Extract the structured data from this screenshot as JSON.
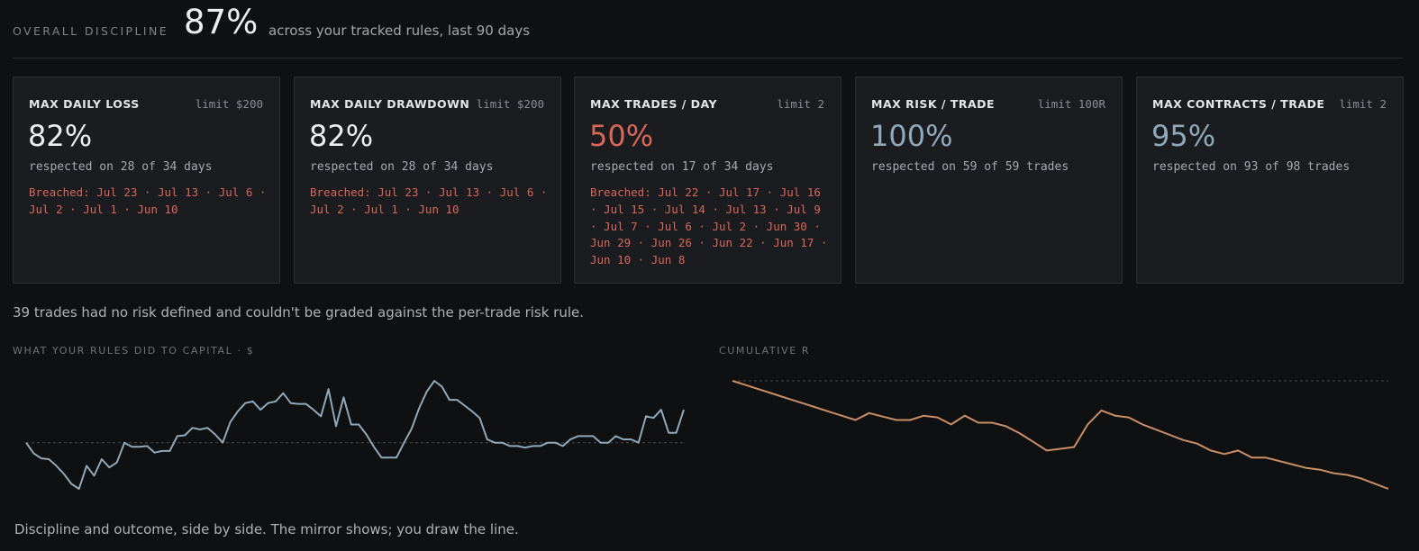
{
  "header": {
    "label": "OVERALL DISCIPLINE",
    "value": "87%",
    "subtitle": "across your tracked rules, last 90 days"
  },
  "rules": [
    {
      "title": "MAX DAILY LOSS",
      "limit": "limit $200",
      "pct": "82%",
      "respected": "respected on 28 of 34 days",
      "breached": "Breached: Jul 23 · Jul 13 · Jul 6 · Jul 2 · Jul 1 · Jun 10"
    },
    {
      "title": "MAX DAILY DRAWDOWN",
      "limit": "limit $200",
      "pct": "82%",
      "respected": "respected on 28 of 34 days",
      "breached": "Breached: Jul 23 · Jul 13 · Jul 6 · Jul 2 · Jul 1 · Jun 10"
    },
    {
      "title": "MAX TRADES / DAY",
      "limit": "limit 2",
      "pct": "50%",
      "respected": "respected on 17 of 34 days",
      "breached": "Breached: Jul 22 · Jul 17 · Jul 16 · Jul 15 · Jul 14 · Jul 13 · Jul 9 · Jul 7 · Jul 6 · Jul 2 · Jun 30 · Jun 29 · Jun 26 · Jun 22 · Jun 17 · Jun 10 · Jun 8"
    },
    {
      "title": "MAX RISK / TRADE",
      "limit": "limit 100R",
      "pct": "100%",
      "respected": "respected on 59 of 59 trades",
      "breached": ""
    },
    {
      "title": "MAX CONTRACTS / TRADE",
      "limit": "limit 2",
      "pct": "95%",
      "respected": "respected on 93 of 98 trades",
      "breached": ""
    }
  ],
  "note": "39 trades had no risk defined and couldn't be graded against the per-trade risk rule.",
  "footer": "Discipline and outcome, side by side. The mirror shows; you draw the line.",
  "colors": {
    "background": "#0f1012",
    "card": "#1b1c1f",
    "breach": "#d8675a",
    "capital_line": "#8fa9bb",
    "r_line": "#c98f67",
    "baseline": "#44474c"
  },
  "chart_data": [
    {
      "type": "line",
      "title": "WHAT YOUR RULES DID TO CAPITAL · $",
      "series": [
        {
          "values": [
            0,
            -13,
            -19,
            -20,
            -28,
            -38,
            -50,
            -56,
            -28,
            -40,
            -20,
            -30,
            -24,
            0,
            -5,
            -5,
            -4,
            -12,
            -10,
            -10,
            8,
            9,
            18,
            16,
            18,
            10,
            0,
            25,
            38,
            48,
            50,
            40,
            48,
            50,
            60,
            48,
            47,
            47,
            40,
            32,
            65,
            20,
            55,
            22,
            22,
            10,
            -5,
            -18,
            -18,
            -18,
            0,
            17,
            42,
            62,
            75,
            68,
            52,
            52,
            45,
            38,
            30,
            4,
            0,
            0,
            -4,
            -4,
            -6,
            -4,
            -4,
            0,
            0,
            -4,
            4,
            8,
            8,
            8,
            0,
            0,
            8,
            4,
            4,
            0,
            32,
            30,
            40,
            12,
            12,
            40
          ]
        }
      ],
      "baseline": 0
    },
    {
      "type": "line",
      "title": "CUMULATIVE R",
      "series": [
        {
          "values": [
            0,
            -2.5,
            -5,
            -7.5,
            -10,
            -12.5,
            -15,
            -17.5,
            -20,
            -22.5,
            -18.5,
            -20.5,
            -22.5,
            -22.5,
            -20,
            -21,
            -25,
            -20,
            -24,
            -24,
            -26,
            -30,
            -35,
            -40,
            -39,
            -38,
            -25,
            -17,
            -20,
            -21,
            -25,
            -28,
            -31,
            -34,
            -36,
            -40,
            -42,
            -40,
            -44,
            -44,
            -46,
            -48,
            -50,
            -51,
            -53,
            -54,
            -56,
            -59,
            -62
          ]
        }
      ],
      "baseline": 0
    }
  ]
}
